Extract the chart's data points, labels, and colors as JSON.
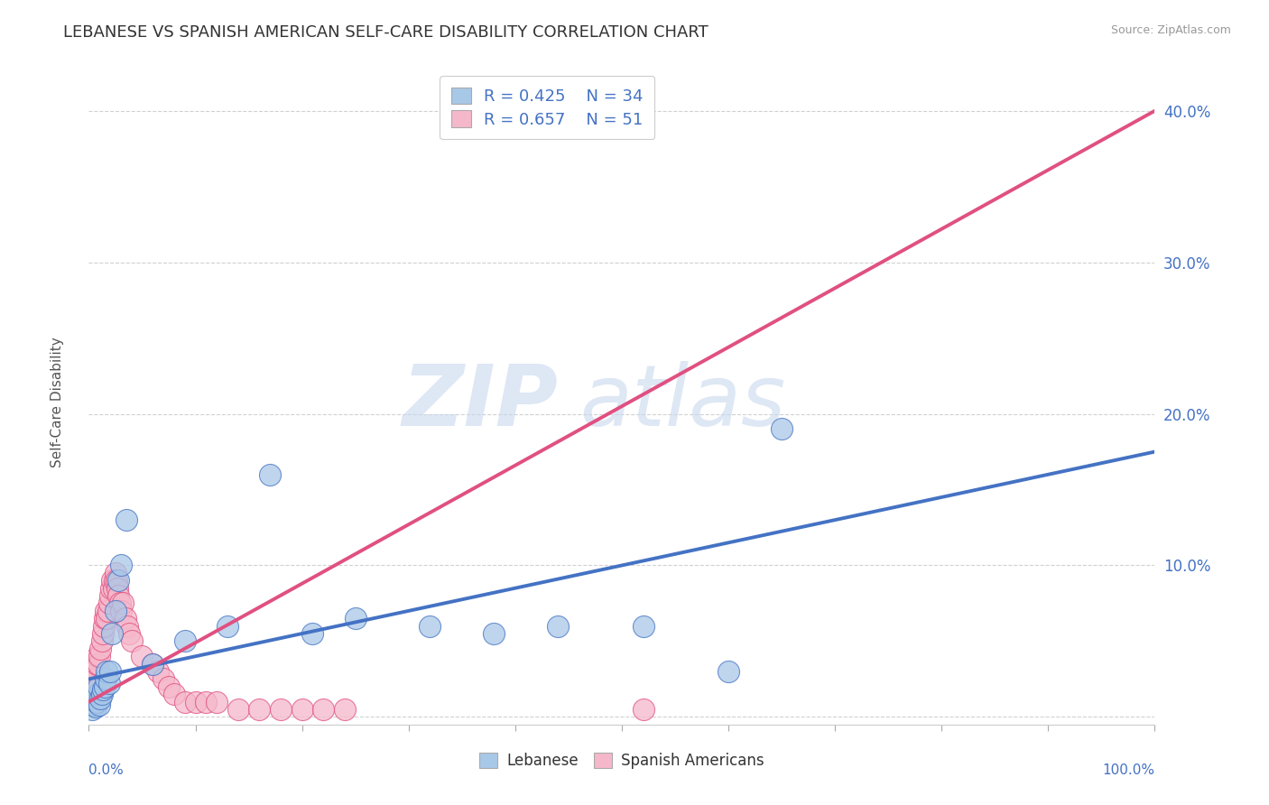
{
  "title": "LEBANESE VS SPANISH AMERICAN SELF-CARE DISABILITY CORRELATION CHART",
  "source": "Source: ZipAtlas.com",
  "ylabel": "Self-Care Disability",
  "xlim": [
    0,
    1
  ],
  "ylim": [
    -0.005,
    0.42
  ],
  "yticks": [
    0.0,
    0.1,
    0.2,
    0.3,
    0.4
  ],
  "ytick_labels": [
    "",
    "10.0%",
    "20.0%",
    "30.0%",
    "40.0%"
  ],
  "watermark_zip": "ZIP",
  "watermark_atlas": "atlas",
  "legend_r1": "R = 0.425",
  "legend_n1": "N = 34",
  "legend_r2": "R = 0.657",
  "legend_n2": "N = 51",
  "label_lebanese": "Lebanese",
  "label_spanish": "Spanish Americans",
  "color_lebanese": "#a8c8e8",
  "color_spanish": "#f5b8cb",
  "line_color_lebanese": "#4472c4",
  "line_color_spanish": "#e05080",
  "title_color": "#333333",
  "axis_label_color": "#4472c4",
  "legend_text_color": "#4472c4",
  "background_color": "#ffffff",
  "lebanese_x": [
    0.002,
    0.003,
    0.004,
    0.005,
    0.006,
    0.007,
    0.008,
    0.009,
    0.01,
    0.011,
    0.012,
    0.013,
    0.015,
    0.016,
    0.017,
    0.019,
    0.02,
    0.022,
    0.025,
    0.028,
    0.03,
    0.035,
    0.06,
    0.09,
    0.13,
    0.17,
    0.21,
    0.25,
    0.32,
    0.38,
    0.44,
    0.52,
    0.6,
    0.65
  ],
  "lebanese_y": [
    0.01,
    0.005,
    0.008,
    0.012,
    0.007,
    0.01,
    0.015,
    0.02,
    0.008,
    0.012,
    0.015,
    0.018,
    0.02,
    0.025,
    0.03,
    0.022,
    0.03,
    0.055,
    0.07,
    0.09,
    0.1,
    0.13,
    0.035,
    0.05,
    0.06,
    0.16,
    0.055,
    0.065,
    0.06,
    0.055,
    0.06,
    0.06,
    0.03,
    0.19
  ],
  "spanish_x": [
    0.002,
    0.003,
    0.004,
    0.005,
    0.006,
    0.007,
    0.008,
    0.009,
    0.01,
    0.011,
    0.012,
    0.013,
    0.014,
    0.015,
    0.016,
    0.017,
    0.018,
    0.019,
    0.02,
    0.021,
    0.022,
    0.023,
    0.024,
    0.025,
    0.026,
    0.027,
    0.028,
    0.029,
    0.03,
    0.032,
    0.034,
    0.036,
    0.038,
    0.04,
    0.05,
    0.06,
    0.065,
    0.07,
    0.075,
    0.08,
    0.09,
    0.1,
    0.11,
    0.12,
    0.14,
    0.16,
    0.18,
    0.2,
    0.22,
    0.24,
    0.52
  ],
  "spanish_y": [
    0.02,
    0.015,
    0.025,
    0.03,
    0.025,
    0.035,
    0.04,
    0.035,
    0.04,
    0.045,
    0.05,
    0.055,
    0.06,
    0.065,
    0.07,
    0.065,
    0.07,
    0.075,
    0.08,
    0.085,
    0.09,
    0.085,
    0.09,
    0.095,
    0.09,
    0.085,
    0.08,
    0.075,
    0.07,
    0.075,
    0.065,
    0.06,
    0.055,
    0.05,
    0.04,
    0.035,
    0.03,
    0.025,
    0.02,
    0.015,
    0.01,
    0.01,
    0.01,
    0.01,
    0.005,
    0.005,
    0.005,
    0.005,
    0.005,
    0.005,
    0.005
  ],
  "lebanese_line_x": [
    0.0,
    1.0
  ],
  "lebanese_line_y": [
    0.025,
    0.175
  ],
  "spanish_line_x": [
    0.0,
    1.0
  ],
  "spanish_line_y": [
    0.01,
    0.4
  ],
  "xtick_positions": [
    0.0,
    0.1,
    0.2,
    0.3,
    0.4,
    0.5,
    0.6,
    0.7,
    0.8,
    0.9,
    1.0
  ]
}
